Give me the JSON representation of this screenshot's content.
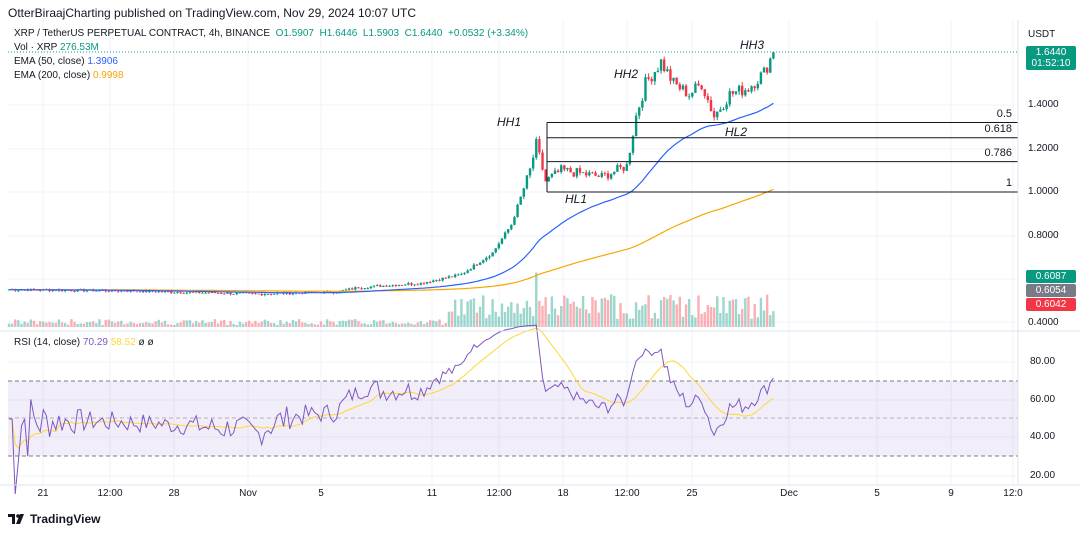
{
  "header": {
    "published": "OtterBiraajCharting published on TradingView.com, Nov 29, 2024 10:07 UTC"
  },
  "legend": {
    "symbol": "XRP / TetherUS PERPETUAL CONTRACT, 4h, BINANCE",
    "o": "O1.5907",
    "h": "H1.6446",
    "l": "L1.5903",
    "c": "C1.6440",
    "chg": "+0.0532 (+3.34%)",
    "vol_label": "Vol · XRP",
    "vol": "276.53M",
    "ema50_label": "EMA (50, close)",
    "ema50": "1.3906",
    "ema200_label": "EMA (200, close)",
    "ema200": "0.9998",
    "rsi_label": "RSI (14, close)",
    "rsi": "70.29",
    "rsi_ma": "58.52",
    "na1": "ø",
    "na2": "ø"
  },
  "price_axis": {
    "currency": "USDT",
    "ticks": [
      "1.4000",
      "1.2000",
      "1.0000",
      "0.8000",
      "0.4000"
    ],
    "last": "1.6440",
    "countdown": "01:52:10",
    "tag1": "0.6087",
    "tag2": "0.6054",
    "tag3": "0.6042"
  },
  "rsi_axis": {
    "ticks": [
      "80.00",
      "60.00",
      "40.00",
      "20.00"
    ]
  },
  "time_axis": [
    "21",
    "12:00",
    "28",
    "Nov",
    "5",
    "11",
    "12:00",
    "18",
    "12:00",
    "25",
    "Dec",
    "5",
    "9",
    "12:0"
  ],
  "fib": [
    {
      "label": "0.5",
      "price": 1.32
    },
    {
      "label": "0.618",
      "price": 1.25
    },
    {
      "label": "0.786",
      "price": 1.14
    },
    {
      "label": "1",
      "price": 1.0
    }
  ],
  "annotations": [
    "HH1",
    "HH2",
    "HH3",
    "HL1",
    "HL2"
  ],
  "footer": {
    "brand": "TradingView"
  },
  "colors": {
    "up": "#089981",
    "down": "#f23645",
    "ema50": "#2962ff",
    "ema200": "#f7a600",
    "rsi": "#7e57c2",
    "rsi_ma": "#fdd835"
  },
  "chart_data": {
    "type": "candlestick",
    "ylim": [
      0.35,
      1.7
    ],
    "rsi_ylim": [
      15,
      95
    ],
    "close_keypoints": [
      [
        0,
        0.55
      ],
      [
        35,
        0.545
      ],
      [
        80,
        0.53
      ],
      [
        105,
        0.54
      ],
      [
        112,
        0.56
      ],
      [
        132,
        0.58
      ],
      [
        145,
        0.62
      ],
      [
        155,
        0.72
      ],
      [
        161,
        0.85
      ],
      [
        167,
        1.1
      ],
      [
        169,
        1.22
      ],
      [
        172,
        1.05
      ],
      [
        177,
        1.1
      ],
      [
        190,
        1.07
      ],
      [
        198,
        1.12
      ],
      [
        201,
        1.35
      ],
      [
        204,
        1.5
      ],
      [
        209,
        1.6
      ],
      [
        213,
        1.5
      ],
      [
        218,
        1.45
      ],
      [
        222,
        1.5
      ],
      [
        226,
        1.35
      ],
      [
        231,
        1.45
      ],
      [
        237,
        1.48
      ],
      [
        242,
        1.55
      ],
      [
        245,
        1.644
      ]
    ]
  }
}
